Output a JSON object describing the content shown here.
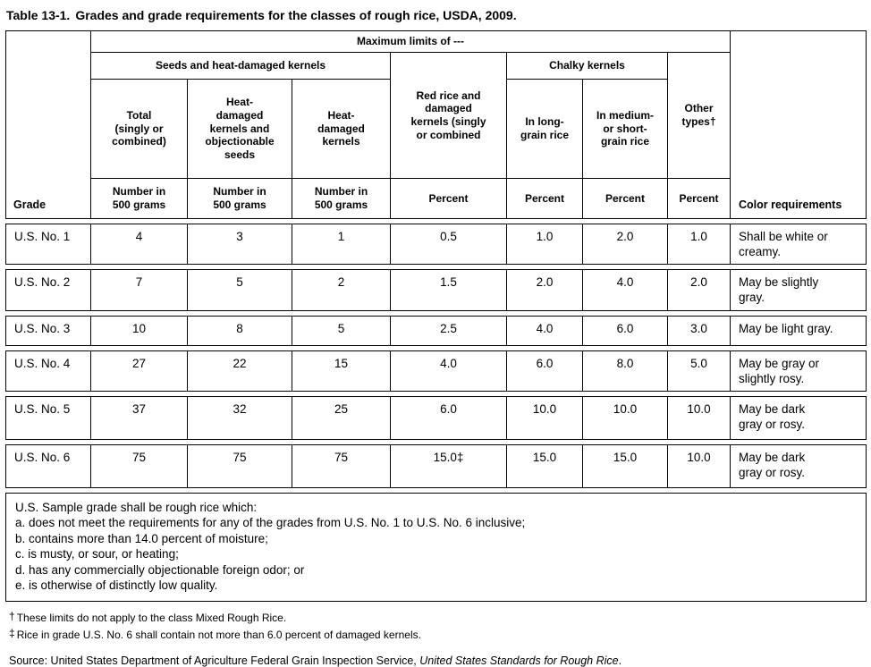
{
  "title": {
    "label": "Table 13-1.",
    "text": "Grades and grade requirements for the classes of rough rice, USDA, 2009."
  },
  "table": {
    "header": {
      "grade": "Grade",
      "max_limits": "Maximum limits of ---",
      "seeds_group": "Seeds and heat-damaged kernels",
      "chalky_group": "Chalky kernels",
      "col_total": "Total\n(singly or\ncombined)",
      "col_heat_objectionable": "Heat-\ndamaged\nkernels and\nobjectionable\nseeds",
      "col_heat": "Heat-\ndamaged\nkernels",
      "col_red_rice": "Red rice and\ndamaged\nkernels (singly\nor combined",
      "col_long_grain": "In long-\ngrain rice",
      "col_medium_short": "In medium-\nor short-\ngrain rice",
      "col_other": "Other\ntypes†",
      "unit_number": "Number in\n500 grams",
      "unit_percent": "Percent",
      "color_requirements": "Color requirements"
    },
    "rows": [
      {
        "grade": "U.S. No. 1",
        "total": "4",
        "heat_obj": "3",
        "heat": "1",
        "red_rice": "0.5",
        "long_grain": "1.0",
        "medium_short": "2.0",
        "other": "1.0",
        "color": "Shall be white or\ncreamy."
      },
      {
        "grade": "U.S. No. 2",
        "total": "7",
        "heat_obj": "5",
        "heat": "2",
        "red_rice": "1.5",
        "long_grain": "2.0",
        "medium_short": "4.0",
        "other": "2.0",
        "color": "May be slightly\ngray."
      },
      {
        "grade": "U.S. No. 3",
        "total": "10",
        "heat_obj": "8",
        "heat": "5",
        "red_rice": "2.5",
        "long_grain": "4.0",
        "medium_short": "6.0",
        "other": "3.0",
        "color": "May be light gray."
      },
      {
        "grade": "U.S. No. 4",
        "total": "27",
        "heat_obj": "22",
        "heat": "15",
        "red_rice": "4.0",
        "long_grain": "6.0",
        "medium_short": "8.0",
        "other": "5.0",
        "color": "May be gray or\nslightly rosy."
      },
      {
        "grade": "U.S. No. 5",
        "total": "37",
        "heat_obj": "32",
        "heat": "25",
        "red_rice": "6.0",
        "long_grain": "10.0",
        "medium_short": "10.0",
        "other": "10.0",
        "color": "May be dark\ngray or rosy."
      },
      {
        "grade": "U.S. No. 6",
        "total": "75",
        "heat_obj": "75",
        "heat": "75",
        "red_rice": "15.0‡",
        "long_grain": "15.0",
        "medium_short": "15.0",
        "other": "10.0",
        "color": "May be dark\ngray or rosy."
      }
    ],
    "sample_grade": {
      "intro": "U.S. Sample grade shall be rough rice which:",
      "items": [
        "a. does not meet the requirements for any of the grades from U.S. No. 1 to U.S. No. 6 inclusive;",
        "b. contains more than 14.0 percent of moisture;",
        "c. is musty, or sour, or heating;",
        "d. has any commercially objectionable foreign odor; or",
        "e. is otherwise of distinctly low quality."
      ]
    }
  },
  "footnotes": [
    {
      "marker": "†",
      "text": "These limits do not apply to the class Mixed Rough Rice."
    },
    {
      "marker": "‡",
      "text": "Rice in grade U.S. No. 6 shall contain not more than 6.0 percent of damaged kernels."
    }
  ],
  "source": {
    "prefix": "Source: United States Department of Agriculture Federal Grain Inspection Service, ",
    "italic": "United States Standards for Rough Rice",
    "suffix": "."
  }
}
